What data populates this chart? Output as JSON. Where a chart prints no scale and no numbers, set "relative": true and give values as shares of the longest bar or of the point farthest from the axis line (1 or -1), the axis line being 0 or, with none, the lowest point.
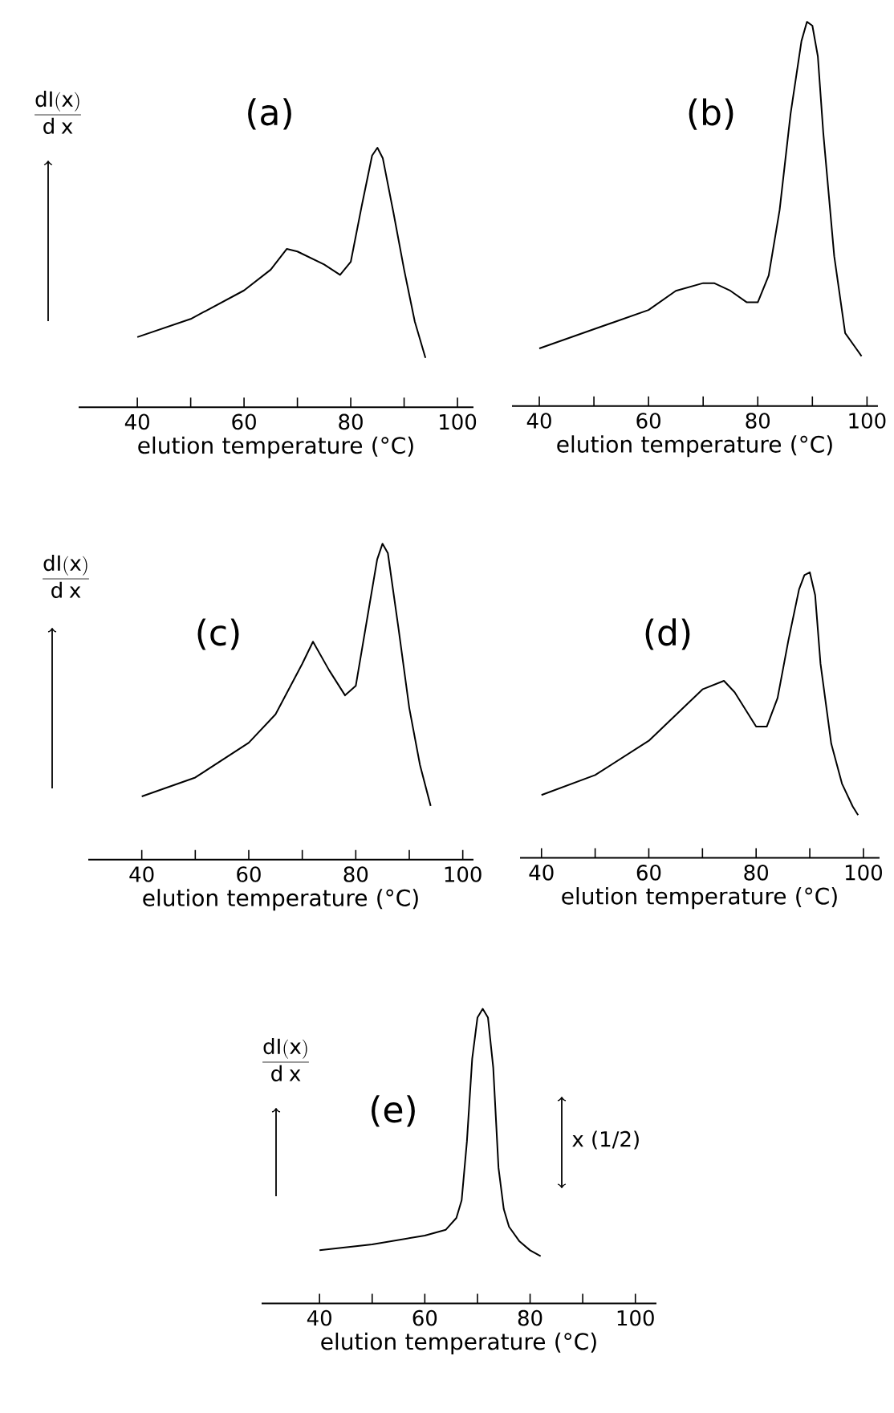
{
  "chart_data": [
    {
      "type": "line",
      "title": "(a)",
      "ylabel": "\\frac{\\mathrm{dI(x)}}{\\mathrm{d\\;x}}",
      "xlabel": "elution temperature (°C)",
      "relative": true,
      "color": "#000000",
      "xlim": [
        29,
        103
      ],
      "xticks": [
        40,
        {
          "value": 50,
          "label": null
        },
        60,
        {
          "value": 70,
          "label": null
        },
        80,
        {
          "value": 90,
          "label": null
        },
        100
      ],
      "x": [
        40,
        50,
        60,
        65,
        68,
        70,
        75,
        78,
        80,
        82,
        84,
        85,
        86,
        88,
        90,
        92,
        94
      ],
      "values": [
        0.27,
        0.34,
        0.45,
        0.53,
        0.61,
        0.6,
        0.55,
        0.51,
        0.56,
        0.77,
        0.97,
        1,
        0.96,
        0.75,
        0.53,
        0.33,
        0.19
      ]
    },
    {
      "type": "line",
      "title": "(b)",
      "xlabel": "elution temperature (°C)",
      "relative": true,
      "color": "#000000",
      "xlim": [
        35,
        102
      ],
      "xticks": [
        40,
        {
          "value": 50,
          "label": null
        },
        60,
        {
          "value": 70,
          "label": null
        },
        80,
        {
          "value": 90,
          "label": null
        },
        100
      ],
      "x": [
        40,
        50,
        60,
        65,
        70,
        72,
        75,
        78,
        80,
        82,
        84,
        86,
        88,
        89,
        90,
        91,
        92,
        94,
        96,
        98,
        99
      ],
      "values": [
        0.15,
        0.2,
        0.25,
        0.3,
        0.32,
        0.32,
        0.3,
        0.27,
        0.27,
        0.34,
        0.51,
        0.76,
        0.95,
        1,
        0.99,
        0.91,
        0.71,
        0.39,
        0.19,
        0.15,
        0.13
      ]
    },
    {
      "type": "line",
      "title": "(c)",
      "ylabel": "\\frac{\\mathrm{dI(x)}}{\\mathrm{d\\;x}}",
      "xlabel": "elution temperature (°C)",
      "relative": true,
      "color": "#000000",
      "xlim": [
        30,
        102
      ],
      "xticks": [
        40,
        {
          "value": 50,
          "label": null
        },
        60,
        {
          "value": 70,
          "label": null
        },
        80,
        {
          "value": 90,
          "label": null
        },
        100
      ],
      "x": [
        40,
        50,
        60,
        65,
        70,
        72,
        75,
        78,
        80,
        82,
        84,
        85,
        86,
        88,
        90,
        92,
        94
      ],
      "values": [
        0.2,
        0.26,
        0.37,
        0.46,
        0.62,
        0.69,
        0.6,
        0.52,
        0.55,
        0.75,
        0.95,
        1,
        0.97,
        0.73,
        0.48,
        0.3,
        0.17
      ]
    },
    {
      "type": "line",
      "title": "(d)",
      "xlabel": "elution temperature (°C)",
      "relative": true,
      "color": "#000000",
      "xlim": [
        36,
        103
      ],
      "xticks": [
        40,
        {
          "value": 50,
          "label": null
        },
        60,
        {
          "value": 70,
          "label": null
        },
        80,
        {
          "value": 90,
          "label": null
        },
        100
      ],
      "x": [
        40,
        50,
        60,
        65,
        70,
        74,
        76,
        80,
        82,
        84,
        86,
        88,
        89,
        90,
        91,
        92,
        94,
        96,
        98,
        99
      ],
      "values": [
        0.22,
        0.29,
        0.41,
        0.5,
        0.59,
        0.62,
        0.58,
        0.46,
        0.46,
        0.56,
        0.76,
        0.94,
        0.99,
        1,
        0.92,
        0.68,
        0.4,
        0.26,
        0.18,
        0.15
      ]
    },
    {
      "type": "line",
      "title": "(e)",
      "ylabel": "\\frac{\\mathrm{dI(x)}}{\\mathrm{d\\;x}}",
      "xlabel": "elution temperature (°C)",
      "relative": true,
      "color": "#000000",
      "xlim": [
        29,
        104
      ],
      "xticks": [
        40,
        {
          "value": 50,
          "label": null
        },
        60,
        {
          "value": 70,
          "label": null
        },
        80,
        {
          "value": 90,
          "label": null
        },
        100
      ],
      "annotations": [
        "x (1/2)"
      ],
      "x": [
        40,
        50,
        60,
        64,
        66,
        67,
        68,
        69,
        70,
        71,
        72,
        73,
        74,
        75,
        76,
        78,
        80,
        82
      ],
      "values": [
        0.18,
        0.2,
        0.23,
        0.25,
        0.29,
        0.35,
        0.55,
        0.83,
        0.97,
        1,
        0.97,
        0.8,
        0.46,
        0.32,
        0.26,
        0.21,
        0.18,
        0.16
      ]
    }
  ]
}
